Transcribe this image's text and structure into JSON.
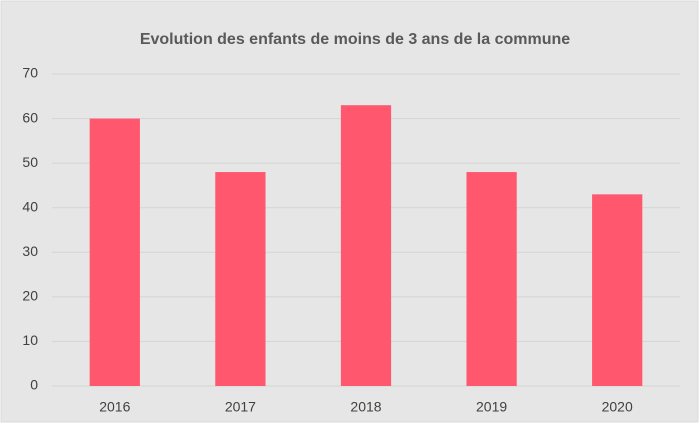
{
  "chart_data": {
    "type": "bar",
    "title": "Evolution des enfants de moins de 3 ans de la commune",
    "categories": [
      "2016",
      "2017",
      "2018",
      "2019",
      "2020"
    ],
    "values": [
      60,
      48,
      63,
      48,
      43
    ],
    "color": "#ff576e",
    "ylim": [
      0,
      70
    ],
    "yticks": [
      0,
      10,
      20,
      30,
      40,
      50,
      60,
      70
    ],
    "grid": true
  }
}
